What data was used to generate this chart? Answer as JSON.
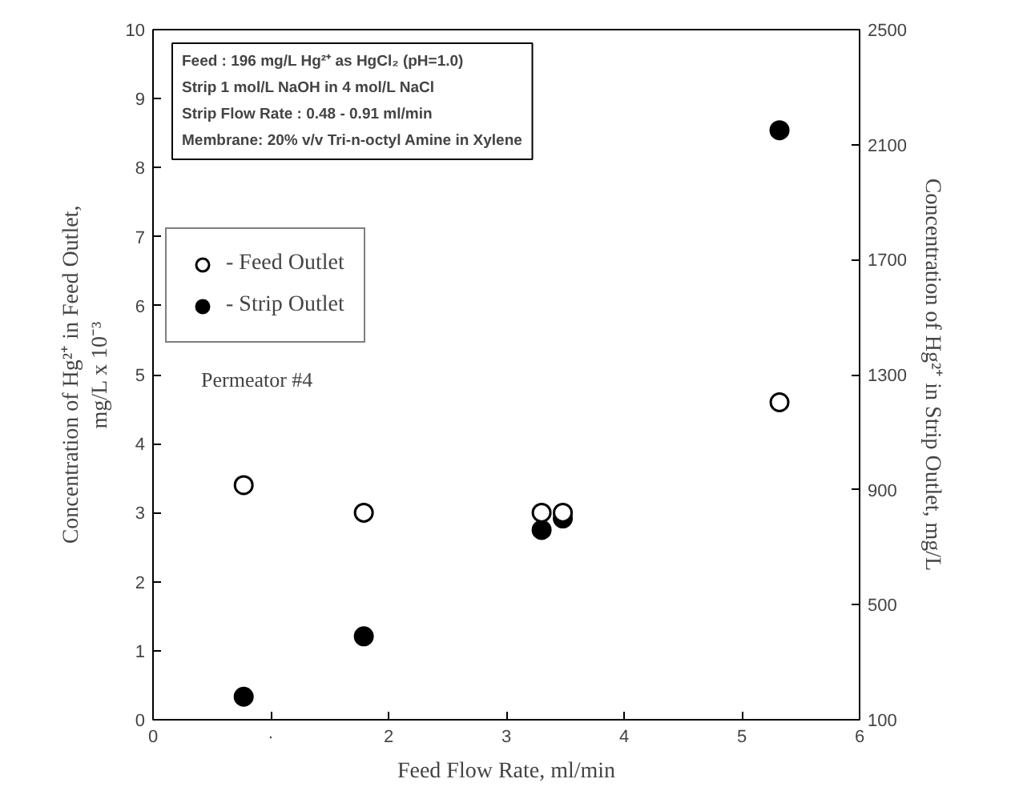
{
  "chart_data": {
    "type": "scatter",
    "xlabel": "Feed Flow Rate, ml/min",
    "ylabel": "Concentration of Hg²⁺ in Feed Outlet,\nmg/L x 10⁻³",
    "y2label": "Concentration of Hg²⁺ in Strip Outlet, mg/L",
    "xlim": [
      0,
      6
    ],
    "xticks": [
      0,
      {
        "value": 1,
        "label": "·"
      },
      2,
      3,
      4,
      5,
      6
    ],
    "ylim": [
      0,
      10
    ],
    "yticks": [
      0,
      1,
      2,
      3,
      4,
      5,
      6,
      7,
      8,
      9,
      10
    ],
    "y2lim": [
      100,
      2500
    ],
    "y2ticks": [
      100,
      500,
      900,
      1300,
      1700,
      2100,
      2500
    ],
    "marker": "circle",
    "grid": false,
    "legend": "top left",
    "series": [
      {
        "name": "- Feed Outlet",
        "color": "#000000",
        "x": [
          0.77,
          1.79,
          3.3,
          3.48,
          5.32
        ],
        "values": [
          3.4,
          3.0,
          3.0,
          3.0,
          4.6
        ]
      },
      {
        "name": "- Strip Outlet",
        "color": "#000000",
        "axis": "y2",
        "x": [
          0.77,
          1.79,
          3.3,
          3.48,
          5.32
        ],
        "values": [
          180,
          390,
          760,
          800,
          2150
        ]
      }
    ],
    "annotations": [
      "Feed : 196 mg/L Hg²⁺ as HgCl₂ (pH=1.0)\nStrip   1 mol/L NaOH in 4  mol/L NaCl\nStrip Flow Rate : 0.48 - 0.91 ml/min\nMembrane: 20% v/v Tri-n-octyl Amine in Xylene",
      "Permeator #4"
    ]
  }
}
